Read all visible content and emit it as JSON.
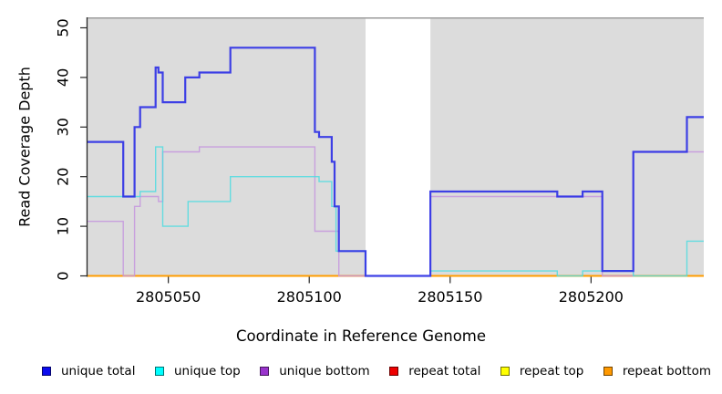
{
  "figure": {
    "title": ""
  },
  "chart_data": {
    "type": "line",
    "subtype": "step",
    "title": "",
    "xlabel": "Coordinate in Reference Genome",
    "ylabel": "Read Coverage Depth",
    "xlim": [
      2805021,
      2805240
    ],
    "ylim": [
      0,
      50
    ],
    "x_ticks": [
      2805050,
      2805100,
      2805150,
      2805200
    ],
    "y_ticks": [
      0,
      10,
      20,
      30,
      40,
      50
    ],
    "grid": false,
    "legend_position": "bottom",
    "panel_background": "#dcdcdc",
    "panel_top_border_color": "#9e9e9e",
    "axis_color": "#262626",
    "masked_region": {
      "x_start": 2805120,
      "x_end": 2805143,
      "color": "#ffffff"
    },
    "series": [
      {
        "name": "unique total",
        "color": "#2b2de6",
        "swatch": "#0b0bee",
        "width": 2.2,
        "opacity": 0.9,
        "steps": [
          [
            2805021,
            27
          ],
          [
            2805034,
            16
          ],
          [
            2805038,
            30
          ],
          [
            2805040,
            34
          ],
          [
            2805045.5,
            42
          ],
          [
            2805046.5,
            41
          ],
          [
            2805048,
            35
          ],
          [
            2805056,
            40
          ],
          [
            2805061,
            41
          ],
          [
            2805072,
            46
          ],
          [
            2805102,
            29
          ],
          [
            2805103.5,
            28
          ],
          [
            2805108,
            23
          ],
          [
            2805109,
            14
          ],
          [
            2805110.5,
            5
          ],
          [
            2805120,
            0
          ],
          [
            2805143,
            17
          ],
          [
            2805188,
            16
          ],
          [
            2805197,
            17
          ],
          [
            2805204,
            1
          ],
          [
            2805215,
            25
          ],
          [
            2805234,
            32
          ],
          [
            2805240,
            32
          ]
        ]
      },
      {
        "name": "unique top",
        "color": "#4fdce0",
        "swatch": "#00ffff",
        "width": 1.4,
        "opacity": 0.85,
        "steps": [
          [
            2805021,
            16
          ],
          [
            2805040,
            17
          ],
          [
            2805045.5,
            26
          ],
          [
            2805048,
            10
          ],
          [
            2805057,
            15
          ],
          [
            2805072,
            20
          ],
          [
            2805103.5,
            19
          ],
          [
            2805108,
            14
          ],
          [
            2805109.5,
            5
          ],
          [
            2805120,
            0
          ],
          [
            2805143,
            1
          ],
          [
            2805188,
            0
          ],
          [
            2805197,
            1
          ],
          [
            2805215,
            0
          ],
          [
            2805234,
            7
          ],
          [
            2805240,
            7
          ]
        ]
      },
      {
        "name": "unique bottom",
        "color": "#c495de",
        "swatch": "#9933cc",
        "width": 1.4,
        "opacity": 0.85,
        "steps": [
          [
            2805021,
            11
          ],
          [
            2805034,
            0
          ],
          [
            2805038,
            14
          ],
          [
            2805040,
            16
          ],
          [
            2805046.5,
            15
          ],
          [
            2805048,
            25
          ],
          [
            2805061,
            26
          ],
          [
            2805102,
            9
          ],
          [
            2805110.5,
            0
          ],
          [
            2805143,
            16
          ],
          [
            2805204,
            0
          ],
          [
            2805215,
            25
          ],
          [
            2805240,
            25
          ]
        ]
      },
      {
        "name": "repeat total",
        "color": "#e00000",
        "swatch": "#ee0000",
        "width": 1.4,
        "opacity": 1,
        "steps": [
          [
            2805021,
            0
          ],
          [
            2805240,
            0
          ]
        ]
      },
      {
        "name": "repeat top",
        "color": "#ffff00",
        "swatch": "#ffff00",
        "width": 1.4,
        "opacity": 1,
        "steps": [
          [
            2805021,
            0
          ],
          [
            2805240,
            0
          ]
        ]
      },
      {
        "name": "repeat bottom",
        "color": "#ff9d00",
        "swatch": "#ff9900",
        "width": 1.9,
        "opacity": 1,
        "steps": [
          [
            2805021,
            0
          ],
          [
            2805240,
            0
          ]
        ]
      }
    ],
    "draw_order": [
      "repeat total",
      "repeat top",
      "repeat bottom",
      "unique bottom",
      "unique top",
      "MASK",
      "unique total"
    ]
  }
}
